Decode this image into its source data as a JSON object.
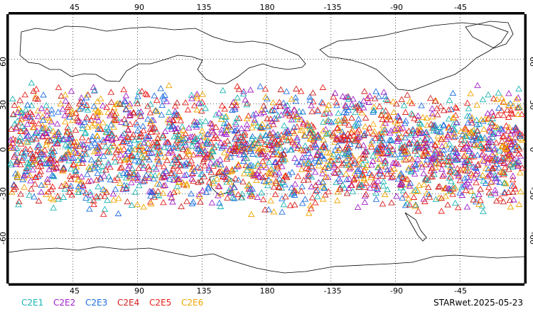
{
  "map": {
    "top_lon_labels": [
      "45",
      "90",
      "135",
      "180",
      "-135",
      "-90",
      "-45"
    ],
    "bottom_lon_labels": [
      "45",
      "90",
      "135",
      "180",
      "-135",
      "-90",
      "-45"
    ],
    "lat_labels": [
      "60",
      "30",
      "0",
      "-30",
      "-60"
    ],
    "stamp": "STARwet.2025-05-23",
    "legend": [
      {
        "label": "C2E1",
        "color": "#19b3b3"
      },
      {
        "label": "C2E2",
        "color": "#a020c8"
      },
      {
        "label": "C2E3",
        "color": "#1f6fe0"
      },
      {
        "label": "C2E4",
        "color": "#d02020"
      },
      {
        "label": "C2E5",
        "color": "#e8201a"
      },
      {
        "label": "C2E6",
        "color": "#f0a500"
      }
    ],
    "marker_lat_range": [
      -45,
      45
    ]
  }
}
